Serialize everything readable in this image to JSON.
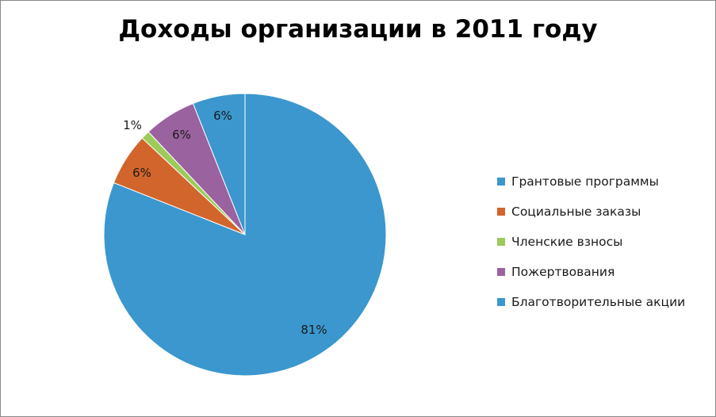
{
  "chart_data": {
    "type": "pie",
    "title": "Доходы организации в 2011 году",
    "slices": [
      {
        "name": "Грантовые программы",
        "value": 81,
        "label": "81%",
        "color": "#3B97CE"
      },
      {
        "name": "Социальные заказы",
        "value": 6,
        "label": "6%",
        "color": "#D2652B"
      },
      {
        "name": "Членские взносы",
        "value": 1,
        "label": "1%",
        "color": "#9BCB5B"
      },
      {
        "name": "Пожертвования",
        "value": 6,
        "label": "6%",
        "color": "#9B62A0"
      },
      {
        "name": "Благотворительные акции",
        "value": 6,
        "label": "6%",
        "color": "#3B97CE"
      }
    ],
    "legend_position": "right",
    "start": "top",
    "direction": "clockwise"
  }
}
